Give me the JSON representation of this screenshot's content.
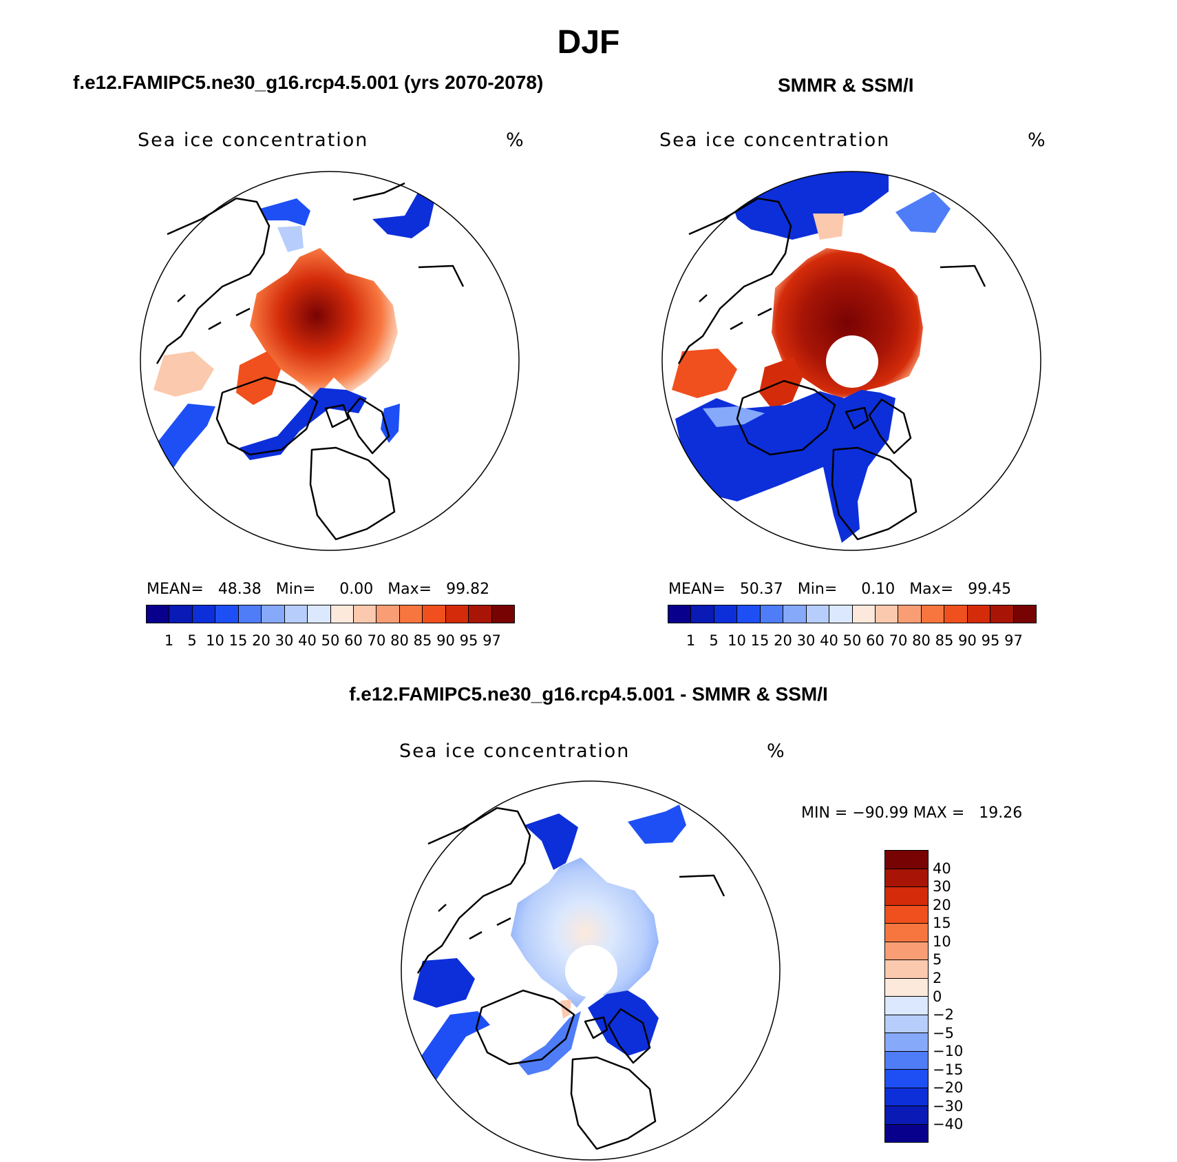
{
  "figure": {
    "main_title": "DJF",
    "variable": "Sea ice concentration",
    "unit": "%",
    "panels": {
      "model": {
        "title": "f.e12.FAMIPC5.ne30_g16.rcp4.5.001 (yrs 2070-2078)",
        "mean_label": "MEAN=",
        "mean": "48.38",
        "min_label": "Min=",
        "min": "0.00",
        "max_label": "Max=",
        "max": "99.82"
      },
      "obs": {
        "title": "SMMR & SSM/I",
        "mean_label": "MEAN=",
        "mean": "50.37",
        "min_label": "Min=",
        "min": "0.10",
        "max_label": "Max=",
        "max": "99.45"
      },
      "diff": {
        "title": "f.e12.FAMIPC5.ne30_g16.rcp4.5.001 - SMMR & SSM/I",
        "minmax_text": "MIN = −90.99 MAX =   19.26"
      }
    }
  },
  "colorbars": {
    "concentration": {
      "labels": [
        "1",
        "5",
        "10",
        "15",
        "20",
        "30",
        "40",
        "50",
        "60",
        "70",
        "80",
        "85",
        "90",
        "95",
        "97"
      ],
      "colors": [
        "#08008c",
        "#0a1ab5",
        "#0d2fd9",
        "#1e4ff5",
        "#4f7df8",
        "#86a9fa",
        "#b7cefc",
        "#dbe8fd",
        "#fde9dc",
        "#fbc9ad",
        "#f99e74",
        "#f7763f",
        "#f0501e",
        "#d42c0a",
        "#a81506",
        "#780303"
      ]
    },
    "difference": {
      "labels": [
        "40",
        "30",
        "20",
        "15",
        "10",
        "5",
        "2",
        "0",
        "−2",
        "−5",
        "−10",
        "−15",
        "−20",
        "−30",
        "−40"
      ],
      "colors": [
        "#780303",
        "#a81506",
        "#d42c0a",
        "#f0501e",
        "#f7763f",
        "#f99e74",
        "#fbc9ad",
        "#fde9dc",
        "#dbe8fd",
        "#b7cefc",
        "#86a9fa",
        "#4f7df8",
        "#1e4ff5",
        "#0d2fd9",
        "#0a1ab5",
        "#08008c"
      ]
    }
  }
}
